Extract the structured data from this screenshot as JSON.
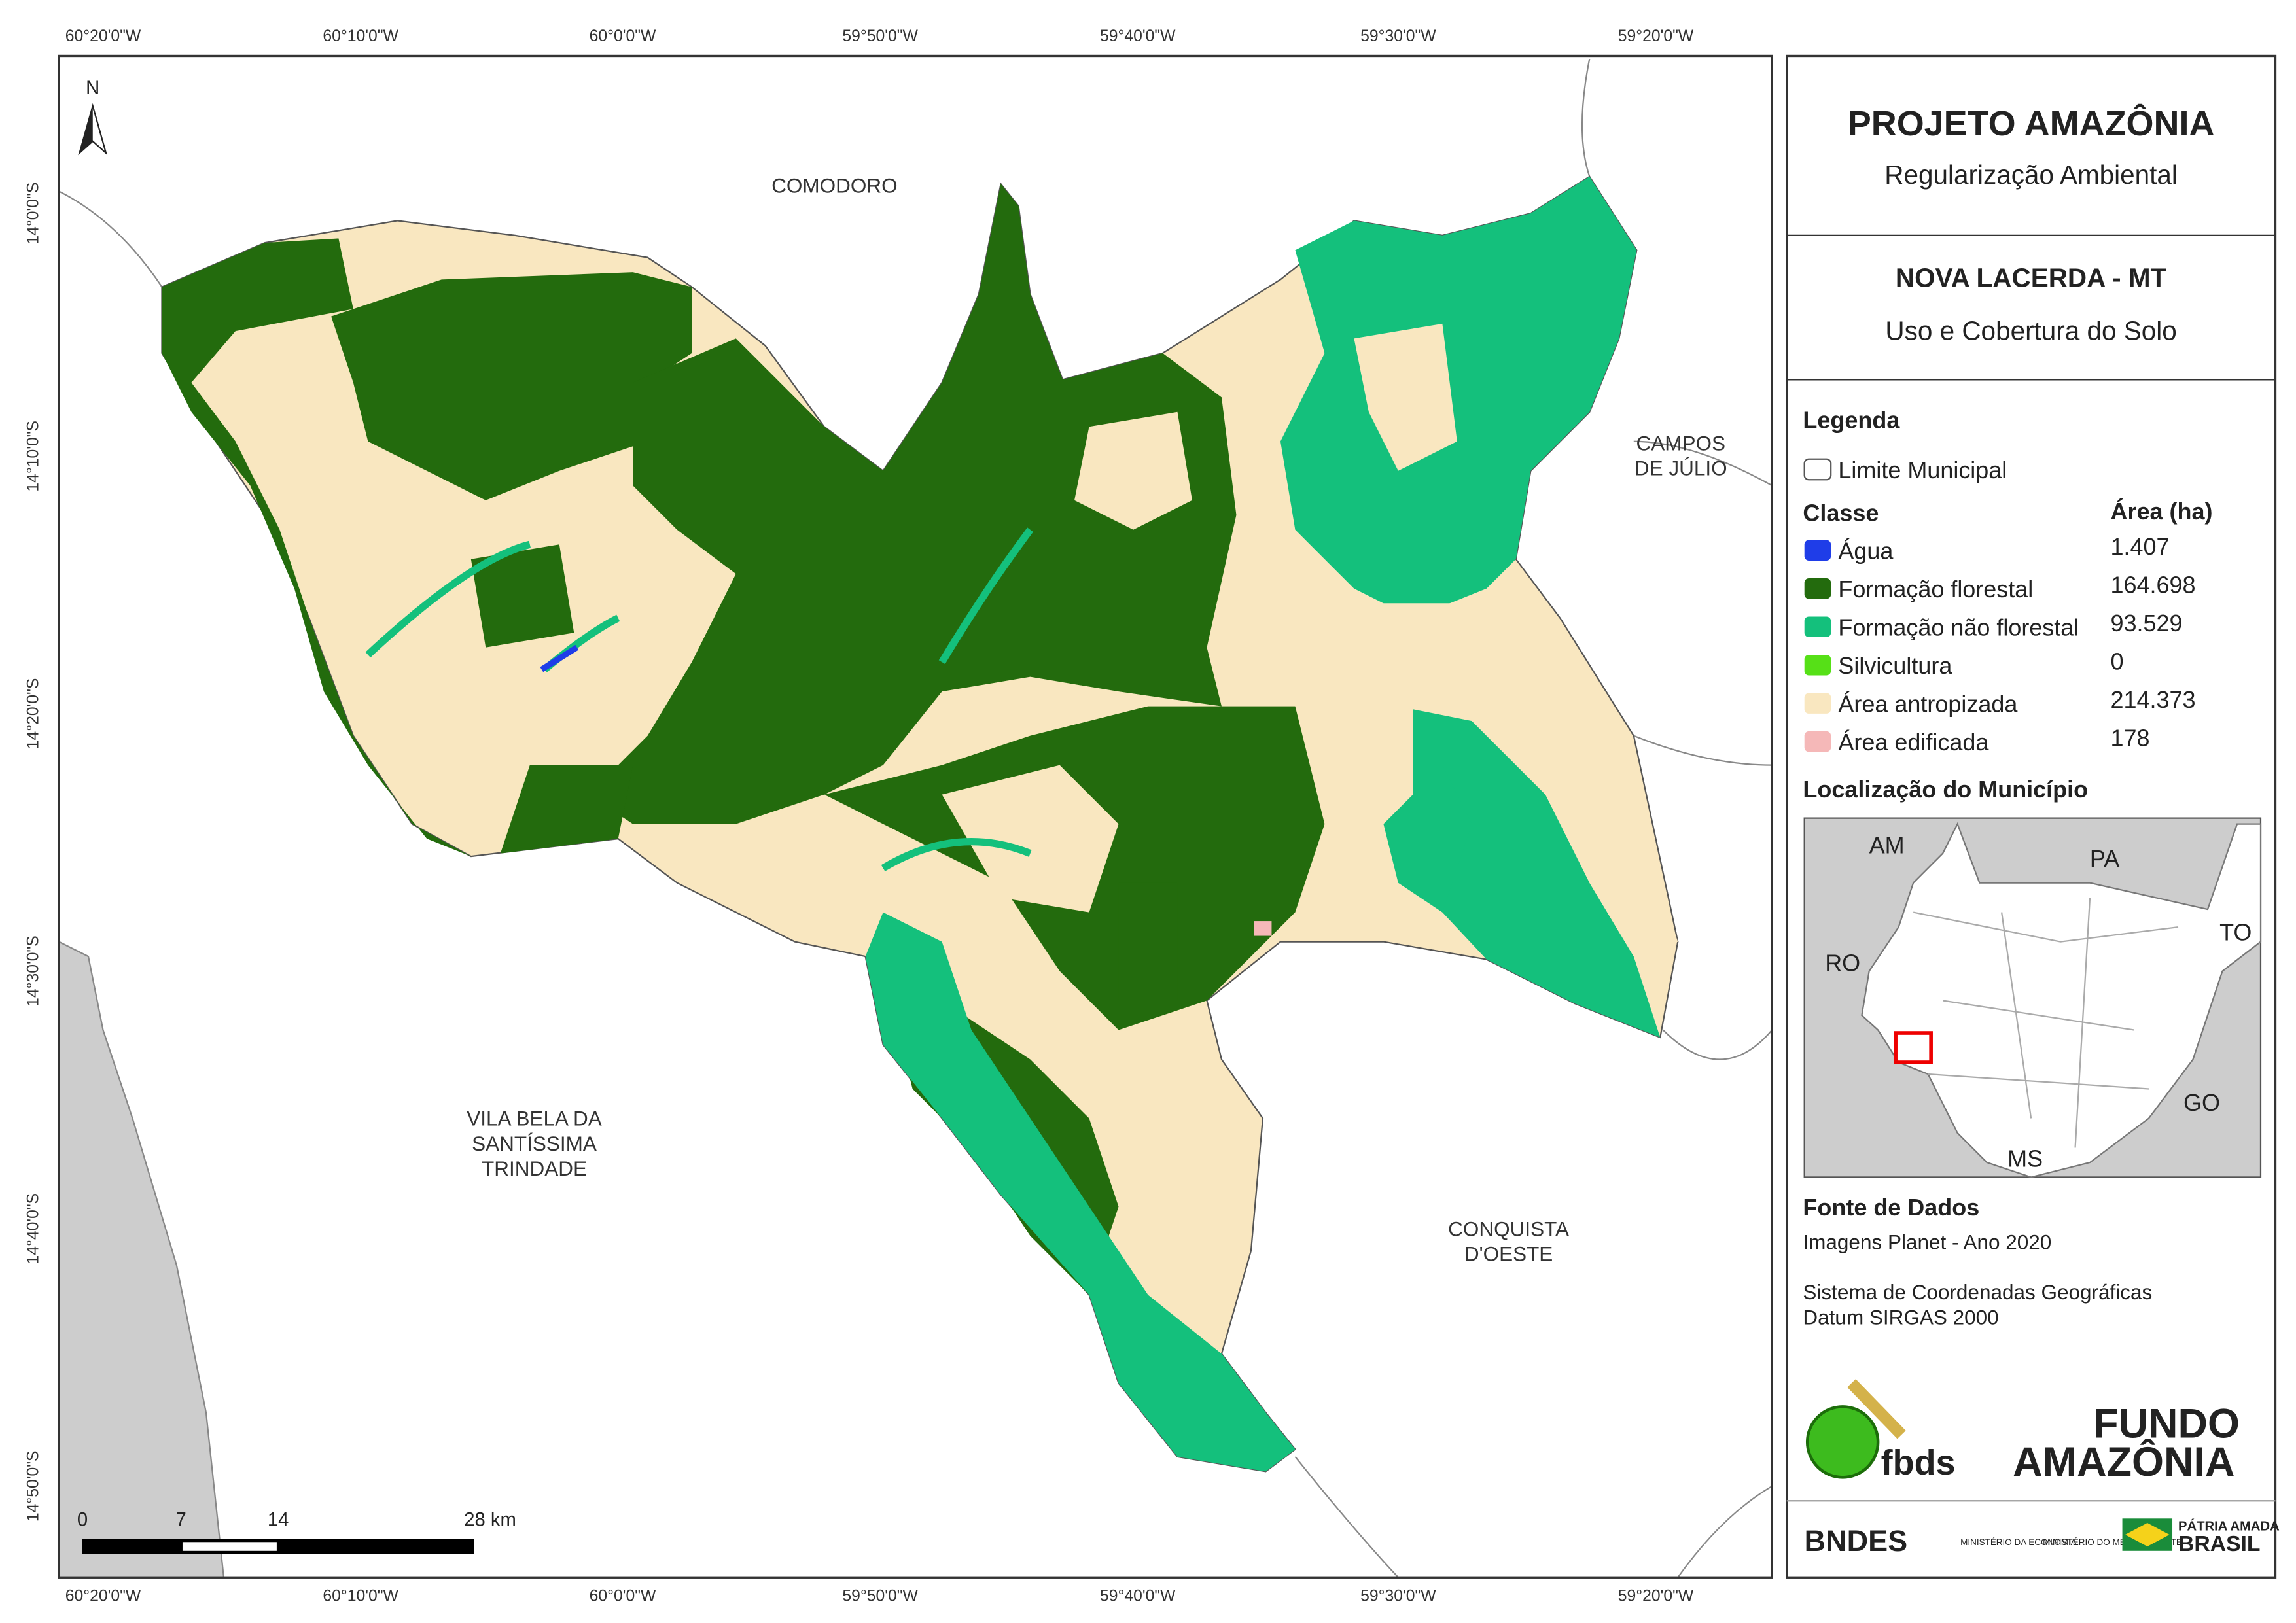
{
  "map": {
    "top_ticks": [
      "60°20'0\"W",
      "60°10'0\"W",
      "60°0'0\"W",
      "59°50'0\"W",
      "59°40'0\"W",
      "59°30'0\"W",
      "59°20'0\"W"
    ],
    "bottom_ticks": [
      "60°20'0\"W",
      "60°10'0\"W",
      "60°0'0\"W",
      "59°50'0\"W",
      "59°40'0\"W",
      "59°30'0\"W",
      "59°20'0\"W"
    ],
    "left_ticks": [
      "14°0'0\"S",
      "14°10'0\"S",
      "14°20'0\"S",
      "14°30'0\"S",
      "14°40'0\"S",
      "14°50'0\"S"
    ],
    "places": [
      {
        "lines": [
          "COMODORO"
        ]
      },
      {
        "lines": [
          "CAMPOS",
          "DE JÚLIO"
        ]
      },
      {
        "lines": [
          "VILA BELA DA",
          "SANTÍSSIMA",
          "TRINDADE"
        ]
      },
      {
        "lines": [
          "CONQUISTA",
          "D'OESTE"
        ]
      }
    ],
    "north": "N",
    "scale": [
      "0",
      "7",
      "14",
      "28 km"
    ]
  },
  "panel": {
    "title": "PROJETO AMAZÔNIA",
    "subtitle": "Regularização Ambiental",
    "municipality": "NOVA LACERDA - MT",
    "theme": "Uso e Cobertura do Solo",
    "legend_title": "Legenda",
    "boundary_label": "Limite Municipal",
    "class_header": "Classe",
    "area_header": "Área (ha)",
    "classes": [
      {
        "name": "Água",
        "area": "1.407",
        "color": "#1f3de8"
      },
      {
        "name": "Formação florestal",
        "area": "164.698",
        "color": "#236b0d"
      },
      {
        "name": "Formação não florestal",
        "area": "93.529",
        "color": "#14c07c"
      },
      {
        "name": "Silvicultura",
        "area": "0",
        "color": "#56e017"
      },
      {
        "name": "Área antropizada",
        "area": "214.373",
        "color": "#f9e7c0"
      },
      {
        "name": "Área edificada",
        "area": "178",
        "color": "#f5b8b8"
      }
    ],
    "locator_title": "Localização do Município",
    "locator_labels": [
      "AM",
      "PA",
      "TO",
      "RO",
      "GO",
      "MS"
    ],
    "source_title": "Fonte de Dados",
    "source": [
      "Imagens Planet - Ano 2020",
      "Sistema de Coordenadas Geográficas",
      "Datum SIRGAS 2000"
    ],
    "logos": [
      "fbds",
      "FUNDO",
      "AMAZÔNIA",
      "BNDES",
      "MINISTÉRIO DA ECONOMIA",
      "MINISTÉRIO DO MEIO AMBIENTE",
      "PÁTRIA AMADA",
      "BRASIL"
    ]
  }
}
